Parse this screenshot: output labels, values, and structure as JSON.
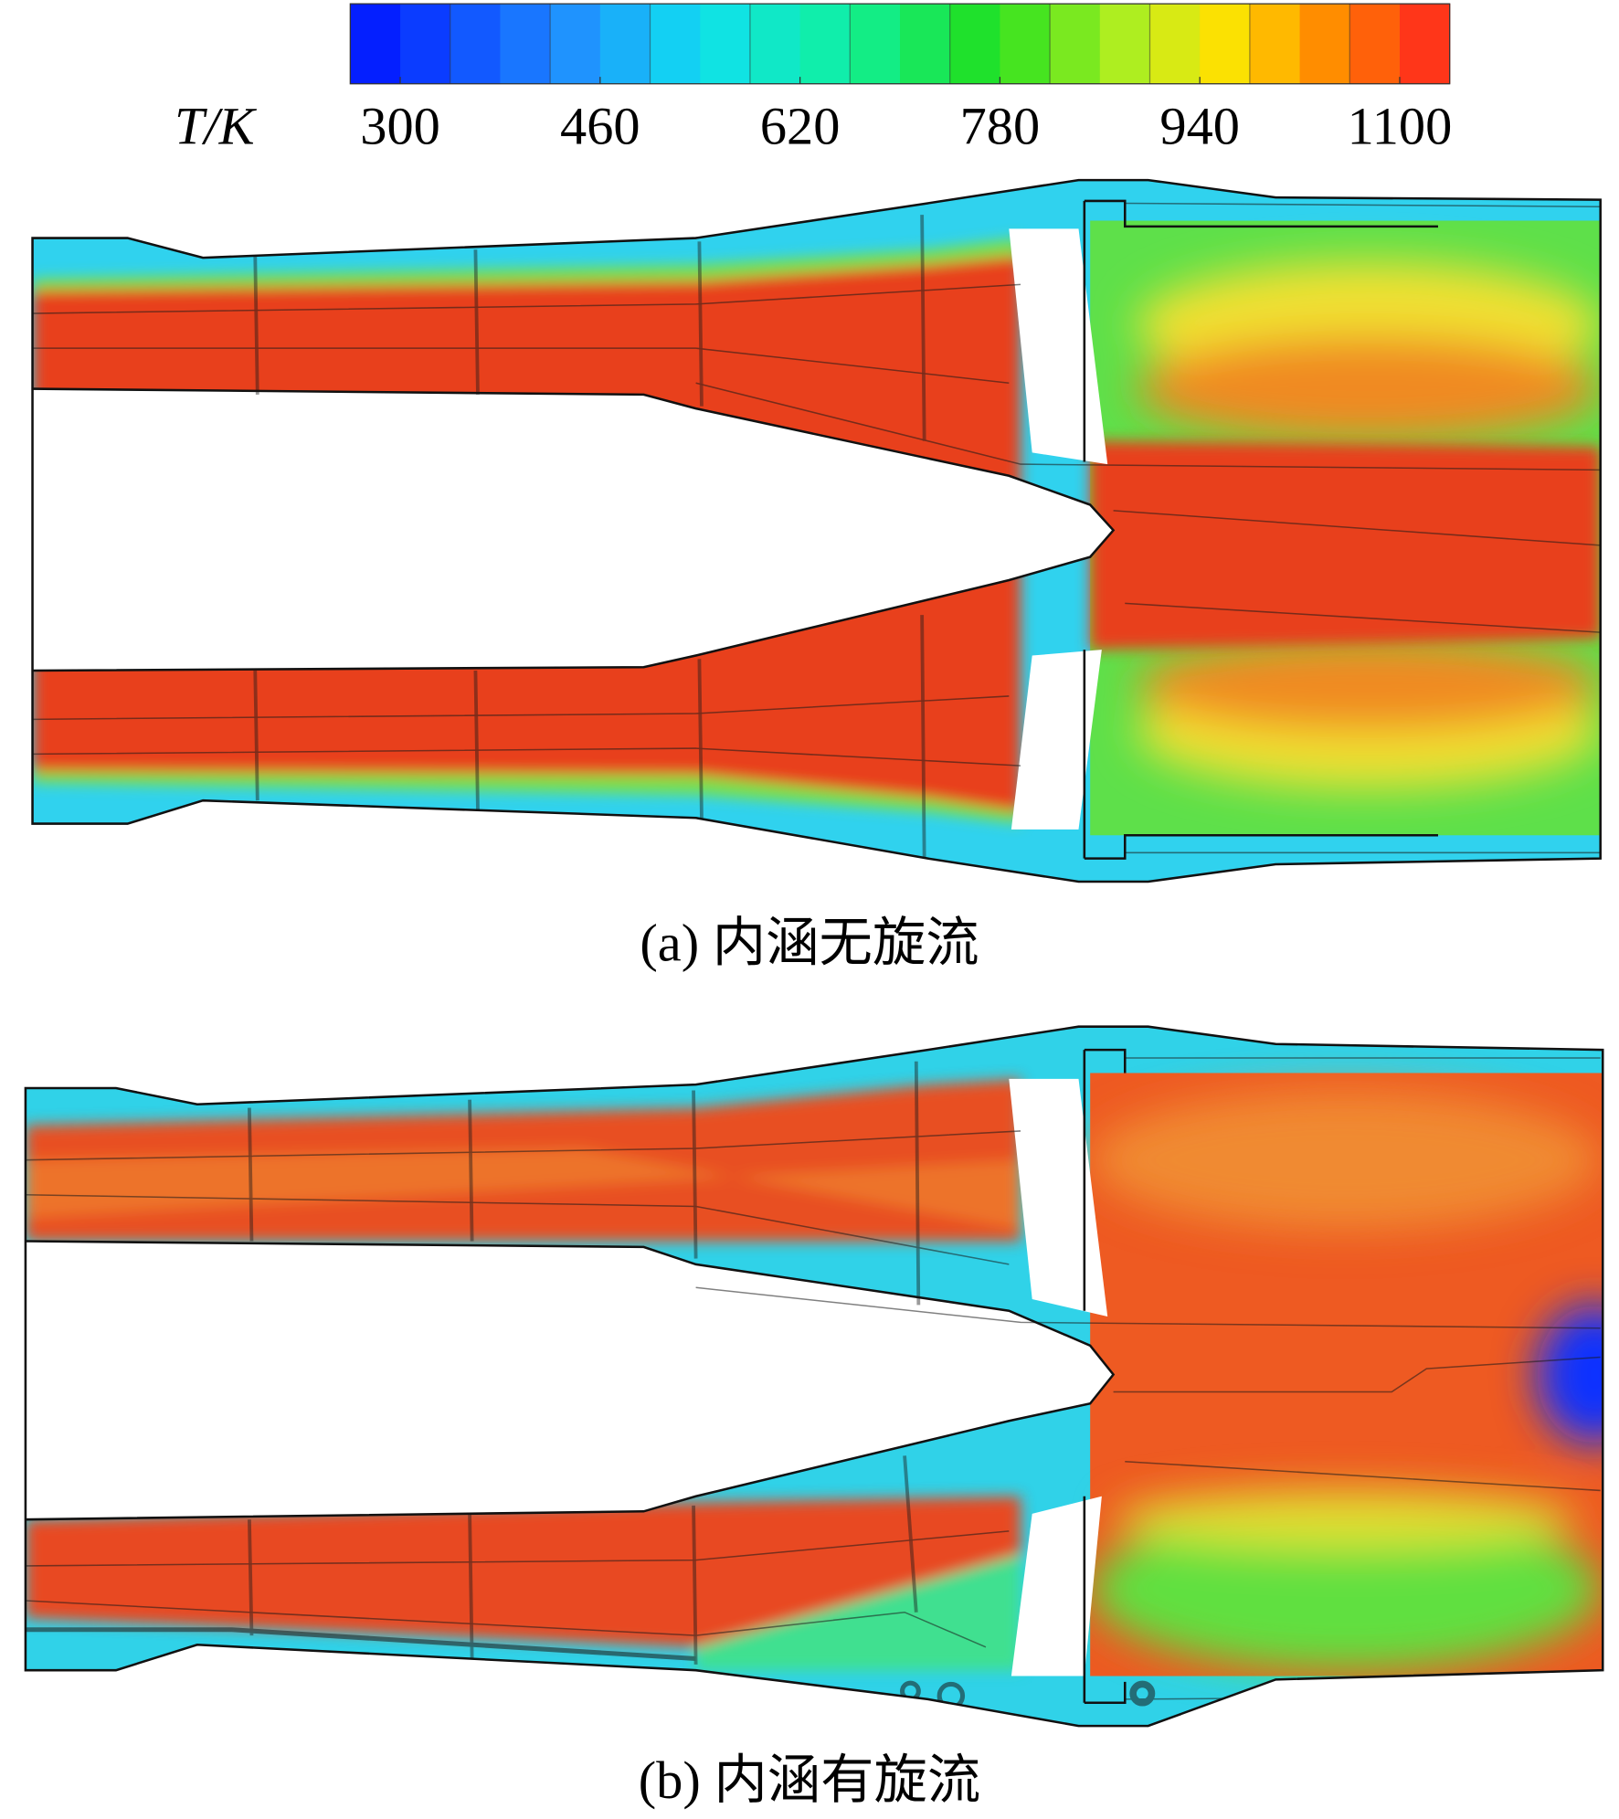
{
  "colorbar": {
    "label": "T/K",
    "range": [
      260,
      1140
    ],
    "ticks": [
      300,
      460,
      620,
      780,
      940,
      1100
    ]
  },
  "panels": [
    {
      "caption": "(a) 内涵无旋流"
    },
    {
      "caption": "(b) 内涵有旋流"
    }
  ]
}
